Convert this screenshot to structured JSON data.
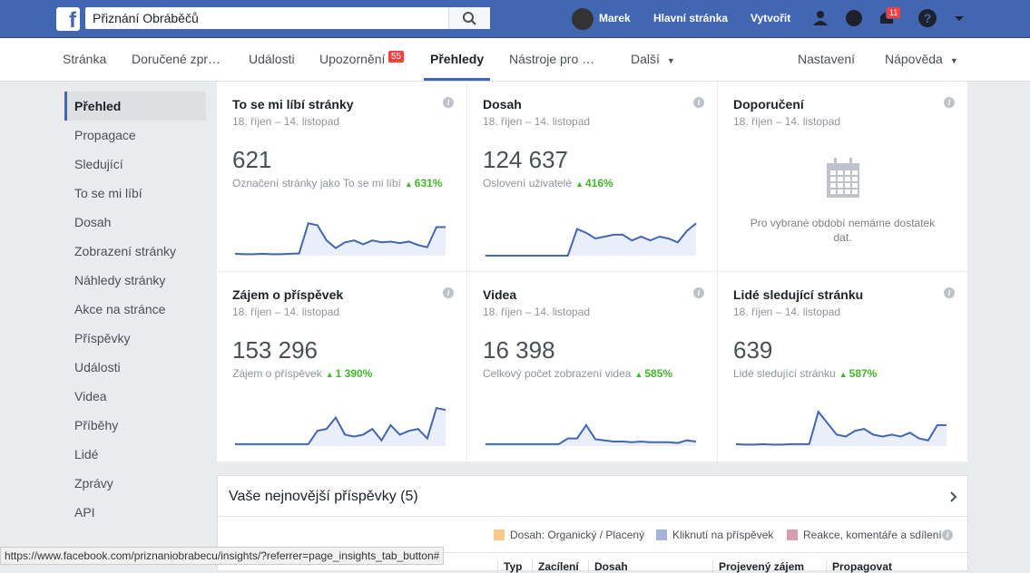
{
  "header": {
    "search": "Přiznání Obráběčů",
    "user": "Marek",
    "links": [
      "Hlavní stránka",
      "Vytvořit"
    ],
    "notifications": "11"
  },
  "nav": {
    "tabs": [
      "Stránka",
      "Doručené zpr…",
      "Události",
      "Upozornění",
      "Přehledy",
      "Nástroje pro …",
      "Další"
    ],
    "badge": "55",
    "right": [
      "Nastavení",
      "Nápověda"
    ]
  },
  "sidebar": [
    "Přehled",
    "Propagace",
    "Sledující",
    "To se mi líbí",
    "Dosah",
    "Zobrazení stránky",
    "Náhledy stránky",
    "Akce na stránce",
    "Příspěvky",
    "Události",
    "Videa",
    "Příběhy",
    "Lidé",
    "Zprávy",
    "API"
  ],
  "cards": [
    {
      "title": "To se mi líbí stránky",
      "date": "18. říjen – 14. listopad",
      "value": "621",
      "label": "Označení stránky jako To se mi líbí",
      "change": "631%",
      "sparkline": [
        5,
        4,
        4,
        5,
        4,
        4,
        5,
        6,
        85,
        80,
        40,
        20,
        35,
        40,
        30,
        40,
        35,
        37,
        33,
        37,
        28,
        22,
        75,
        75
      ]
    },
    {
      "title": "Dosah",
      "date": "18. říjen – 14. listopad",
      "value": "124 637",
      "label": "Oslovení uživatelé",
      "change": "416%",
      "sparkline": [
        0,
        0,
        0,
        0,
        0,
        0,
        0,
        0,
        0,
        0,
        70,
        60,
        45,
        50,
        55,
        55,
        40,
        50,
        40,
        50,
        45,
        35,
        65,
        85
      ]
    },
    {
      "title": "Doporučení",
      "date": "18. říjen – 14. listopad",
      "message": "Pro vybrané období nemáme dostatek dat."
    },
    {
      "title": "Zájem o příspěvek",
      "date": "18. říjen – 14. listopad",
      "value": "153 296",
      "label": "Zájem o příspěvek",
      "change": "1 390%",
      "sparkline": [
        5,
        5,
        5,
        5,
        5,
        5,
        5,
        5,
        5,
        40,
        45,
        75,
        30,
        25,
        30,
        45,
        15,
        55,
        30,
        40,
        45,
        20,
        100,
        95
      ]
    },
    {
      "title": "Videa",
      "date": "18. říjen – 14. listopad",
      "value": "16 398",
      "label": "Celkový počet zobrazení videa",
      "change": "585%",
      "sparkline": [
        5,
        5,
        5,
        5,
        5,
        5,
        5,
        5,
        5,
        20,
        20,
        55,
        18,
        15,
        12,
        12,
        10,
        12,
        10,
        10,
        10,
        8,
        15,
        12
      ]
    },
    {
      "title": "Lidé sledující stránku",
      "date": "18. říjen – 14. listopad",
      "value": "639",
      "label": "Lidé sledující stránku",
      "change": "587%",
      "sparkline": [
        5,
        4,
        4,
        5,
        4,
        4,
        5,
        5,
        5,
        90,
        60,
        30,
        25,
        40,
        45,
        30,
        25,
        30,
        25,
        35,
        20,
        15,
        55,
        55
      ]
    }
  ],
  "posts": {
    "title": "Vaše nejnovější příspěvky (5)",
    "legend": [
      "Dosah: Organický / Placený",
      "Kliknutí na příspěvek",
      "Reakce, komentáře a sdílení"
    ],
    "columns": [
      "Typ",
      "Zacílení",
      "Dosah",
      "Projevený zájem",
      "Propagovat"
    ]
  },
  "status_url": "https://www.facebook.com/priznaniobrabecu/insights/?referrer=page_insights_tab_button#"
}
